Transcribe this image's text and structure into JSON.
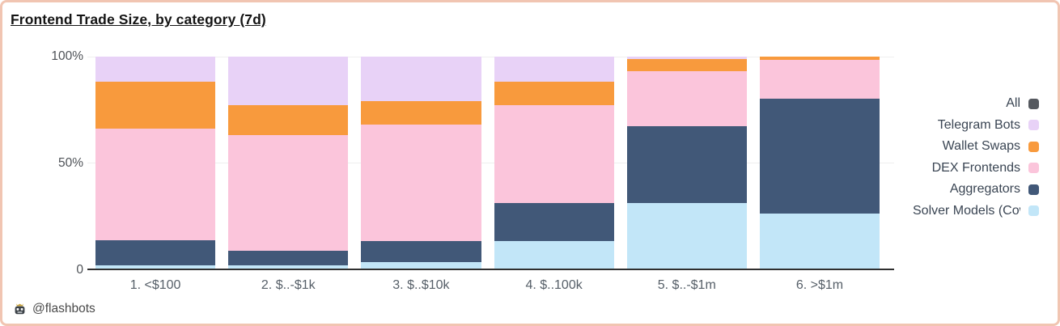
{
  "card": {
    "border_color": "#f1c5b2"
  },
  "title": "Frontend Trade Size, by category (7d)",
  "footer": {
    "handle": "@flashbots",
    "icon": "flashbots-robot-crown"
  },
  "chart_data": {
    "type": "bar",
    "variant": "stacked-100-percent",
    "title": "Frontend Trade Size, by category (7d)",
    "xlabel": "",
    "ylabel": "",
    "ylim": [
      0,
      100
    ],
    "unit": "%",
    "grid": "faint horizontal at 50% and 100%",
    "legend_position": "right",
    "categories": [
      "1. <$100",
      "2. $..-$1k",
      "3. $..$10k",
      "4. $..100k",
      "5. $..-$1m",
      "6. >$1m"
    ],
    "series": [
      {
        "name": "Solver Models (Cow",
        "color": "#c2e6f8",
        "values": [
          1.5,
          1.5,
          3,
          13,
          31,
          26
        ]
      },
      {
        "name": "Aggregators",
        "color": "#415878",
        "values": [
          12,
          7,
          10,
          18,
          36,
          54
        ]
      },
      {
        "name": "DEX Frontends",
        "color": "#fbc5db",
        "values": [
          52.5,
          54.5,
          55,
          46,
          26,
          18.5
        ]
      },
      {
        "name": "Wallet Swaps",
        "color": "#f89a3d",
        "values": [
          22,
          14,
          11,
          11,
          6,
          1.5
        ]
      },
      {
        "name": "Telegram Bots",
        "color": "#e8d2f7",
        "values": [
          12,
          23,
          21,
          12,
          1,
          0
        ]
      }
    ],
    "yticks": [
      {
        "label": "100%",
        "value": 100
      },
      {
        "label": "50%",
        "value": 50
      },
      {
        "label": "0",
        "value": 0
      }
    ],
    "legend": [
      {
        "label": "All",
        "color": "#55595f"
      },
      {
        "label": "Telegram Bots",
        "color": "#e8d2f7"
      },
      {
        "label": "Wallet Swaps",
        "color": "#f89a3d"
      },
      {
        "label": "DEX Frontends",
        "color": "#fbc5db"
      },
      {
        "label": "Aggregators",
        "color": "#415878"
      },
      {
        "label": "Solver Models (Cow",
        "color": "#c2e6f8"
      }
    ]
  }
}
